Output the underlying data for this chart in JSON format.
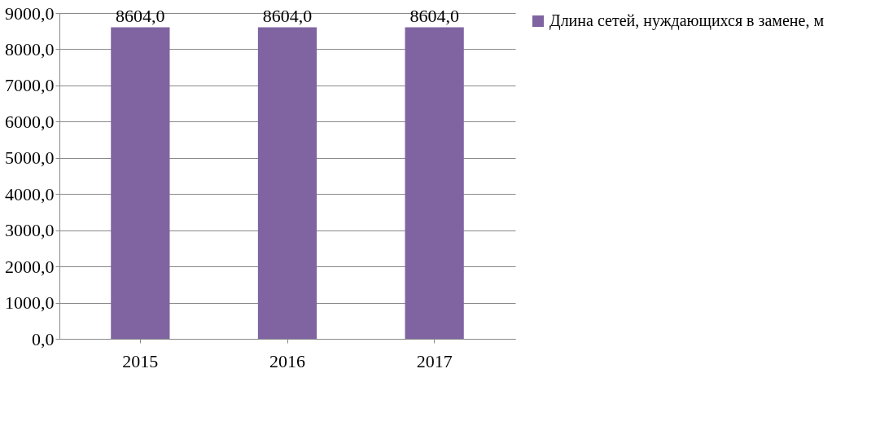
{
  "chart_data": {
    "type": "bar",
    "categories": [
      "2015",
      "2016",
      "2017"
    ],
    "series": [
      {
        "name": "Длина сетей, нуждающихся в замене, м",
        "color": "#8064a2",
        "values": [
          8604.0,
          8604.0,
          8604.0
        ],
        "value_labels": [
          "8604,0",
          "8604,0",
          "8604,0"
        ]
      }
    ],
    "ylim": [
      0,
      9000
    ],
    "yticks": [
      {
        "value": 0,
        "label": "0,0"
      },
      {
        "value": 1000,
        "label": "1000,0"
      },
      {
        "value": 2000,
        "label": "2000,0"
      },
      {
        "value": 3000,
        "label": "3000,0"
      },
      {
        "value": 4000,
        "label": "4000,0"
      },
      {
        "value": 5000,
        "label": "5000,0"
      },
      {
        "value": 6000,
        "label": "6000,0"
      },
      {
        "value": 7000,
        "label": "7000,0"
      },
      {
        "value": 8000,
        "label": "8000,0"
      },
      {
        "value": 9000,
        "label": "9000,0"
      }
    ],
    "grid": "y",
    "legend": "right"
  }
}
